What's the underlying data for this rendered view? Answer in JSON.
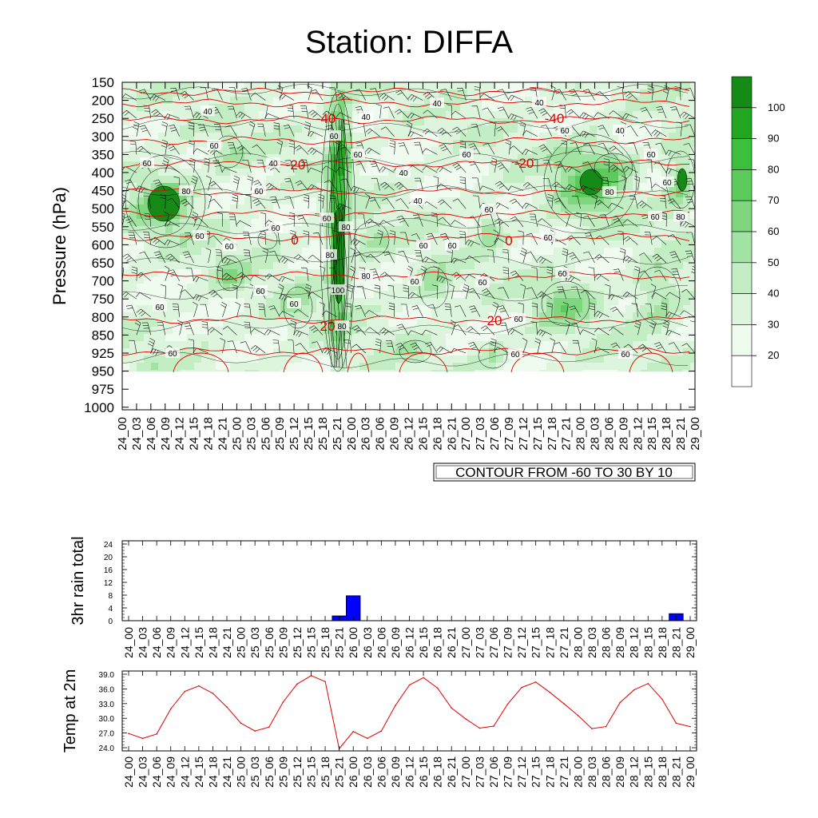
{
  "title": "Station: DIFFA",
  "colors": {
    "fill_scale": [
      "#ffffff",
      "#f0fbf0",
      "#dcf5dc",
      "#c3edc3",
      "#a2e2a2",
      "#7fd67f",
      "#5ccb5c",
      "#3cbf3c",
      "#22a622",
      "#168a16"
    ],
    "temp_contour": "#e00000",
    "contour_line": "#000000",
    "rain_bar": "#0000ff",
    "temp_line": "#e00000"
  },
  "chart_data": [
    {
      "type": "heatmap",
      "title": "Station: DIFFA",
      "ylabel": "Pressure (hPa)",
      "y_ticks": [
        "150",
        "200",
        "250",
        "300",
        "350",
        "400",
        "450",
        "500",
        "550",
        "600",
        "650",
        "700",
        "750",
        "800",
        "850",
        "925",
        "950",
        "975",
        "1000"
      ],
      "x_ticks": [
        "24_00",
        "24_03",
        "24_06",
        "24_09",
        "24_12",
        "24_15",
        "24_18",
        "24_21",
        "25_00",
        "25_03",
        "25_06",
        "25_09",
        "25_12",
        "25_15",
        "25_18",
        "25_21",
        "26_00",
        "26_03",
        "26_06",
        "26_09",
        "26_12",
        "26_15",
        "26_18",
        "26_21",
        "27_00",
        "27_03",
        "27_06",
        "27_09",
        "27_12",
        "27_15",
        "27_18",
        "27_21",
        "28_00",
        "28_03",
        "28_06",
        "28_09",
        "28_12",
        "28_15",
        "28_18",
        "28_21",
        "29_00"
      ],
      "colorbar_labels": [
        "100",
        "90",
        "80",
        "70",
        "60",
        "50",
        "40",
        "30",
        "20"
      ],
      "contour_info": "CONTOUR FROM -60 TO 30 BY 10",
      "rh_contour_labels": [
        "40",
        "60",
        "80",
        "100"
      ],
      "temperature_contours": [
        {
          "value": -40,
          "label": "-40",
          "pressure": 250
        },
        {
          "value": -20,
          "label": "-20",
          "pressure": 385
        },
        {
          "value": 0,
          "label": "0",
          "pressure": 585
        },
        {
          "value": 20,
          "label": "20",
          "pressure": 805
        }
      ],
      "data_note": "relative humidity fill (%) with red temperature isotherms (°C) and wind barbs"
    },
    {
      "type": "bar",
      "ylabel": "3hr rain total",
      "ylim": [
        0,
        24
      ],
      "y_ticks": [
        "0",
        "4",
        "8",
        "12",
        "16",
        "20",
        "24"
      ],
      "categories": [
        "24_00",
        "24_03",
        "24_06",
        "24_09",
        "24_12",
        "24_15",
        "24_18",
        "24_21",
        "25_00",
        "25_03",
        "25_06",
        "25_09",
        "25_12",
        "25_15",
        "25_18",
        "25_21",
        "26_00",
        "26_03",
        "26_06",
        "26_09",
        "26_12",
        "26_15",
        "26_18",
        "26_21",
        "27_00",
        "27_03",
        "27_06",
        "27_09",
        "27_12",
        "27_15",
        "27_18",
        "27_21",
        "28_00",
        "28_03",
        "28_06",
        "28_09",
        "28_12",
        "28_15",
        "28_18",
        "28_21",
        "29_00"
      ],
      "values": [
        0,
        0,
        0,
        0,
        0,
        0,
        0,
        0,
        0,
        0,
        0,
        0,
        0,
        0,
        0,
        1.5,
        7.8,
        0,
        0,
        0,
        0,
        0,
        0,
        0,
        0,
        0,
        0,
        0,
        0,
        0,
        0,
        0,
        0,
        0,
        0,
        0,
        0,
        0,
        0,
        2.2,
        0
      ]
    },
    {
      "type": "line",
      "ylabel": "Temp at 2m",
      "ylim": [
        24.0,
        39.0
      ],
      "y_ticks": [
        "24.0",
        "27.0",
        "30.0",
        "33.0",
        "36.0",
        "39.0"
      ],
      "categories": [
        "24_00",
        "24_03",
        "24_06",
        "24_09",
        "24_12",
        "24_15",
        "24_18",
        "24_21",
        "25_00",
        "25_03",
        "25_06",
        "25_09",
        "25_12",
        "25_15",
        "25_18",
        "25_21",
        "26_00",
        "26_03",
        "26_06",
        "26_09",
        "26_12",
        "26_15",
        "26_18",
        "26_21",
        "27_00",
        "27_03",
        "27_06",
        "27_09",
        "27_12",
        "27_15",
        "27_18",
        "27_21",
        "28_00",
        "28_03",
        "28_06",
        "28_09",
        "28_12",
        "28_15",
        "28_18",
        "28_21",
        "29_00"
      ],
      "values": [
        26.9,
        25.9,
        26.8,
        31.9,
        35.5,
        36.6,
        35.1,
        32.3,
        29.0,
        27.4,
        28.2,
        33.3,
        37.0,
        38.7,
        37.5,
        23.8,
        27.3,
        25.9,
        27.4,
        32.6,
        36.8,
        38.3,
        36.2,
        32.1,
        29.9,
        28.0,
        28.4,
        32.9,
        36.3,
        37.4,
        35.3,
        33.0,
        30.6,
        27.9,
        28.3,
        33.2,
        35.8,
        37.1,
        33.9,
        29.0,
        28.3
      ]
    }
  ]
}
